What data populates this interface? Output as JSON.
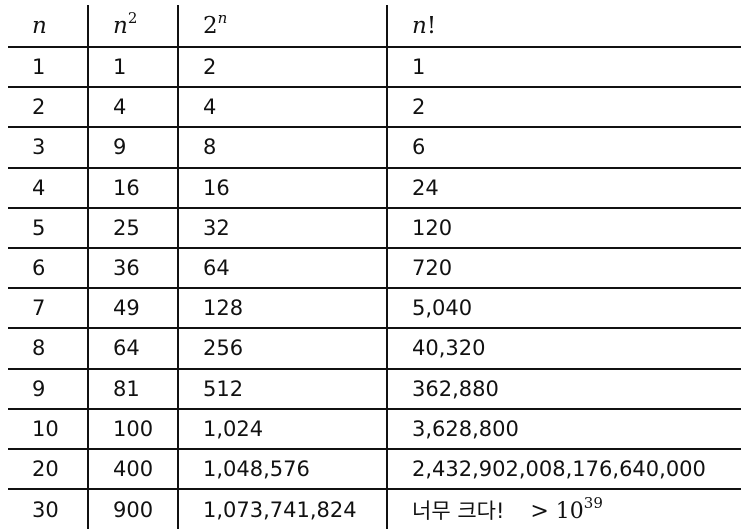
{
  "headers": {
    "n": {
      "base": "n",
      "exp": ""
    },
    "n_squared": {
      "base": "n",
      "exp": "2"
    },
    "two_pow_n": {
      "base": "2",
      "exp": "n"
    },
    "factorial": {
      "base": "n",
      "suffix": "!"
    }
  },
  "rows": [
    {
      "n": "1",
      "n_squared": "1",
      "two_pow_n": "2",
      "factorial": "1"
    },
    {
      "n": "2",
      "n_squared": "4",
      "two_pow_n": "4",
      "factorial": "2"
    },
    {
      "n": "3",
      "n_squared": "9",
      "two_pow_n": "8",
      "factorial": "6"
    },
    {
      "n": "4",
      "n_squared": "16",
      "two_pow_n": "16",
      "factorial": "24"
    },
    {
      "n": "5",
      "n_squared": "25",
      "two_pow_n": "32",
      "factorial": "120"
    },
    {
      "n": "6",
      "n_squared": "36",
      "two_pow_n": "64",
      "factorial": "720"
    },
    {
      "n": "7",
      "n_squared": "49",
      "two_pow_n": "128",
      "factorial": "5,040"
    },
    {
      "n": "8",
      "n_squared": "64",
      "two_pow_n": "256",
      "factorial": "40,320"
    },
    {
      "n": "9",
      "n_squared": "81",
      "two_pow_n": "512",
      "factorial": "362,880"
    },
    {
      "n": "10",
      "n_squared": "100",
      "two_pow_n": "1,024",
      "factorial": "3,628,800"
    },
    {
      "n": "20",
      "n_squared": "400",
      "two_pow_n": "1,048,576",
      "factorial": "2,432,902,008,176,640,000"
    },
    {
      "n": "30",
      "n_squared": "900",
      "two_pow_n": "1,073,741,824",
      "factorial": "너무 크다!",
      "factorial_note": {
        "text": "> 10",
        "exp": "39"
      }
    }
  ]
}
